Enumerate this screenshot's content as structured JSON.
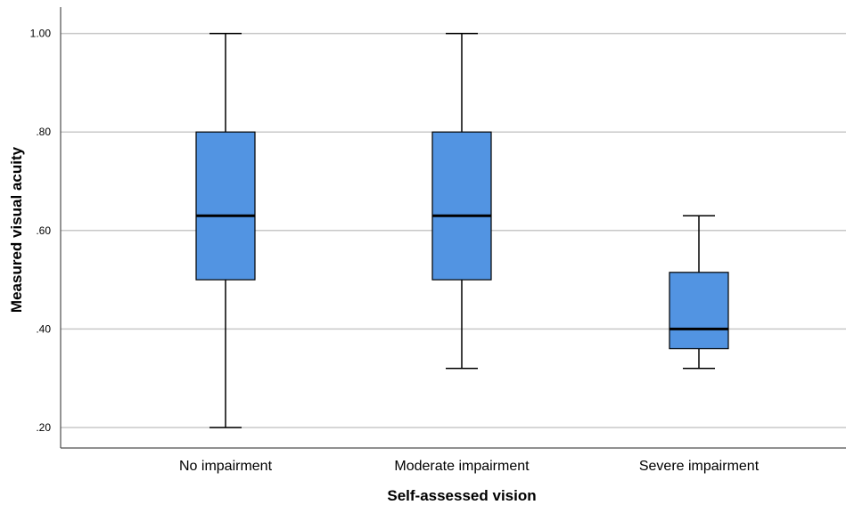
{
  "chart_data": {
    "type": "boxplot",
    "xlabel": "Self-assessed vision",
    "ylabel": "Measured visual acuity",
    "ylim": [
      0.18,
      1.06
    ],
    "yticks": [
      0.2,
      0.4,
      0.6,
      0.8,
      1.0
    ],
    "ytick_labels": [
      ".20",
      ".40",
      ".60",
      ".80",
      "1.00"
    ],
    "grid": "horizontal",
    "categories": [
      "No impairment",
      "Moderate impairment",
      "Severe impairment"
    ],
    "boxes": [
      {
        "category": "No impairment",
        "min": 0.2,
        "q1": 0.5,
        "median": 0.63,
        "q3": 0.8,
        "max": 1.0
      },
      {
        "category": "Moderate impairment",
        "min": 0.32,
        "q1": 0.5,
        "median": 0.63,
        "q3": 0.8,
        "max": 1.0
      },
      {
        "category": "Severe impairment",
        "min": 0.32,
        "q1": 0.36,
        "median": 0.4,
        "q3": 0.515,
        "max": 0.63
      }
    ],
    "colors": {
      "box_fill": "#5294e2",
      "box_stroke": "#000000",
      "grid": "#c8c8c8",
      "axis": "#4d4d4d"
    }
  }
}
